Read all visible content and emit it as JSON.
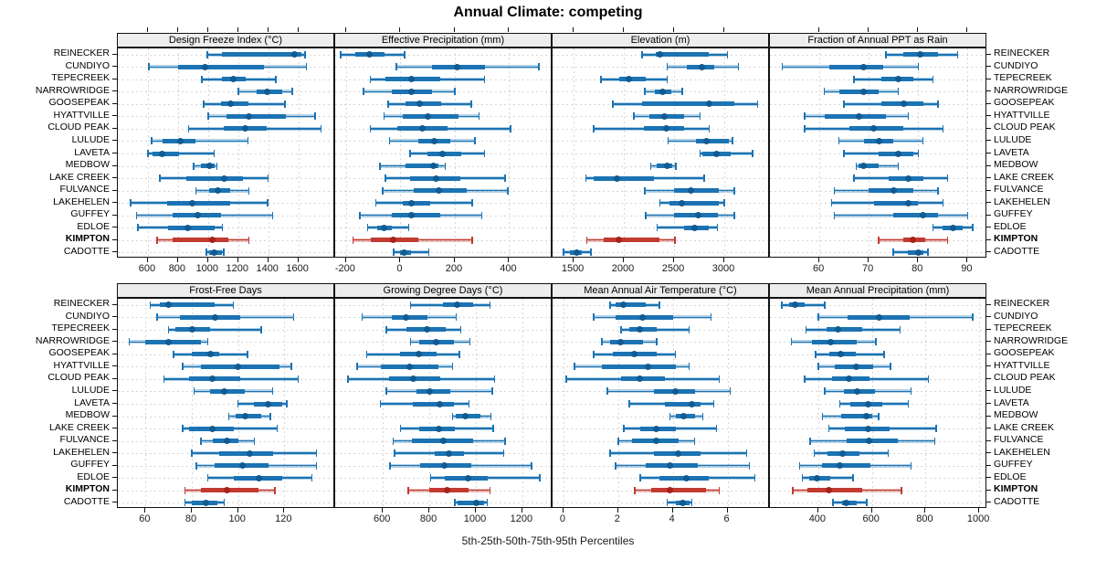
{
  "title": "Annual Climate: competing",
  "caption": "5th-25th-50th-75th-95th Percentiles",
  "colors": {
    "series_main": "#1b73b3",
    "series_light": "rgba(27,115,179,0.33)",
    "series_dot": "#135a90",
    "highlight_main": "#c23a30",
    "highlight_light": "rgba(194,58,48,0.33)",
    "highlight_dot": "#a6231b",
    "strip_bg": "#ededed",
    "grid": "#d6d6d6",
    "border": "#111111"
  },
  "chart_data": {
    "type": "interval",
    "subtype": "percentile-interval-lattice",
    "percentiles": [
      5,
      25,
      50,
      75,
      95
    ],
    "legend_position": "none",
    "grid": "dashed",
    "highlight_site": "KIMPTON",
    "sites": [
      "REINECKER",
      "CUNDIYO",
      "TEPECREEK",
      "NARROWRIDGE",
      "GOOSEPEAK",
      "HYATTVILLE",
      "CLOUD PEAK",
      "LULUDE",
      "LAVETA",
      "MEDBOW",
      "LAKE CREEK",
      "FULVANCE",
      "LAKEHELEN",
      "GUFFEY",
      "EDLOE",
      "KIMPTON",
      "CADOTTE"
    ],
    "panels": [
      {
        "title": "Design Freeze Index (°C)",
        "grid_row": 0,
        "grid_col": 0,
        "xlim": [
          400,
          1845
        ],
        "xticks": [
          600,
          800,
          1000,
          1200,
          1400,
          1600
        ],
        "values": [
          [
            995,
            1095,
            1575,
            1620,
            1645
          ],
          [
            605,
            800,
            980,
            1370,
            1655
          ],
          [
            960,
            1095,
            1165,
            1250,
            1450
          ],
          [
            1200,
            1320,
            1395,
            1490,
            1560
          ],
          [
            970,
            1085,
            1150,
            1270,
            1510
          ],
          [
            1000,
            1125,
            1270,
            1520,
            1710
          ],
          [
            870,
            1105,
            1245,
            1390,
            1750
          ],
          [
            625,
            695,
            815,
            915,
            1265
          ],
          [
            600,
            630,
            695,
            805,
            1040
          ],
          [
            905,
            955,
            1010,
            1045,
            1060
          ],
          [
            680,
            855,
            1105,
            1230,
            1400
          ],
          [
            920,
            1005,
            1065,
            1145,
            1270
          ],
          [
            485,
            725,
            895,
            1145,
            1395
          ],
          [
            525,
            765,
            930,
            1085,
            1430
          ],
          [
            535,
            735,
            865,
            1045,
            1095
          ],
          [
            660,
            765,
            1030,
            1135,
            1270
          ],
          [
            990,
            1005,
            1040,
            1095,
            1105
          ]
        ]
      },
      {
        "title": "Effective Precipitation (mm)",
        "grid_row": 0,
        "grid_col": 1,
        "xlim": [
          -240,
          560
        ],
        "xticks": [
          -200,
          0,
          200,
          400
        ],
        "values": [
          [
            -220,
            -165,
            -115,
            -60,
            15
          ],
          [
            -15,
            115,
            210,
            310,
            510
          ],
          [
            -110,
            -55,
            40,
            145,
            310
          ],
          [
            -135,
            -30,
            40,
            115,
            200
          ],
          [
            -45,
            20,
            70,
            150,
            260
          ],
          [
            -60,
            10,
            100,
            215,
            290
          ],
          [
            -110,
            -10,
            80,
            175,
            405
          ],
          [
            -40,
            65,
            125,
            185,
            275
          ],
          [
            35,
            100,
            155,
            225,
            310
          ],
          [
            -75,
            20,
            120,
            140,
            165
          ],
          [
            -55,
            35,
            130,
            220,
            385
          ],
          [
            -65,
            50,
            140,
            245,
            395
          ],
          [
            -90,
            10,
            40,
            110,
            265
          ],
          [
            -150,
            -30,
            40,
            145,
            300
          ],
          [
            -120,
            -85,
            -60,
            -30,
            30
          ],
          [
            -175,
            -110,
            -25,
            65,
            265
          ],
          [
            -25,
            0,
            15,
            40,
            105
          ]
        ]
      },
      {
        "title": "Elevation (m)",
        "grid_row": 0,
        "grid_col": 2,
        "xlim": [
          1290,
          3455
        ],
        "xticks": [
          1500,
          2000,
          2500,
          3000
        ],
        "values": [
          [
            2180,
            2320,
            2360,
            2845,
            3030
          ],
          [
            2430,
            2630,
            2780,
            2900,
            3140
          ],
          [
            1770,
            1950,
            2050,
            2220,
            2430
          ],
          [
            2210,
            2310,
            2390,
            2470,
            2580
          ],
          [
            1890,
            2180,
            2850,
            3100,
            3330
          ],
          [
            2100,
            2250,
            2400,
            2600,
            2760
          ],
          [
            1700,
            2200,
            2420,
            2600,
            2850
          ],
          [
            2440,
            2720,
            2820,
            3050,
            3080
          ],
          [
            2760,
            2780,
            2920,
            3060,
            3280
          ],
          [
            2270,
            2330,
            2430,
            2480,
            2520
          ],
          [
            1620,
            1700,
            1930,
            2300,
            2800
          ],
          [
            2210,
            2500,
            2670,
            2950,
            3100
          ],
          [
            2360,
            2450,
            2580,
            2950,
            3000
          ],
          [
            2220,
            2500,
            2740,
            2940,
            3100
          ],
          [
            2330,
            2600,
            2700,
            2850,
            2930
          ],
          [
            1630,
            1800,
            1950,
            2350,
            2510
          ],
          [
            1400,
            1460,
            1530,
            1580,
            1670
          ]
        ]
      },
      {
        "title": "Fraction of Annual PPT as Rain",
        "grid_row": 0,
        "grid_col": 3,
        "xlim": [
          50,
          94
        ],
        "xticks": [
          60,
          70,
          80,
          90
        ],
        "values": [
          [
            73.5,
            77,
            80.5,
            84,
            88
          ],
          [
            52.5,
            62,
            69,
            73,
            80
          ],
          [
            67,
            72.5,
            76,
            79,
            83
          ],
          [
            61,
            64,
            69,
            72,
            76
          ],
          [
            65,
            72.5,
            77,
            81,
            84
          ],
          [
            57,
            61,
            68,
            73.5,
            78
          ],
          [
            57,
            66,
            71,
            77,
            85
          ],
          [
            64,
            69,
            72,
            75,
            81
          ],
          [
            65,
            72,
            76,
            79,
            80
          ],
          [
            67.5,
            68,
            69,
            72,
            76
          ],
          [
            67,
            74,
            78,
            81,
            86
          ],
          [
            63,
            70,
            75,
            79,
            84
          ],
          [
            62.5,
            71,
            78,
            80,
            85
          ],
          [
            63,
            75,
            81,
            84,
            90
          ],
          [
            83,
            85,
            87,
            89,
            91
          ],
          [
            72,
            77,
            79,
            81.5,
            86
          ],
          [
            75,
            78,
            80,
            81,
            82
          ]
        ]
      },
      {
        "title": "Frost-Free Days",
        "grid_row": 1,
        "grid_col": 0,
        "xlim": [
          48,
          142
        ],
        "xticks": [
          60,
          80,
          100,
          120
        ],
        "values": [
          [
            62,
            66,
            70,
            90,
            98
          ],
          [
            65,
            75,
            90,
            101,
            124
          ],
          [
            70,
            73,
            80,
            88,
            110
          ],
          [
            53,
            60,
            70,
            84,
            87
          ],
          [
            72,
            80,
            88,
            92,
            104
          ],
          [
            76,
            84,
            100,
            118,
            123
          ],
          [
            68,
            79,
            89,
            101,
            126
          ],
          [
            81,
            88,
            94,
            103,
            115
          ],
          [
            100,
            107,
            113,
            119,
            121
          ],
          [
            96,
            99,
            103,
            110,
            114
          ],
          [
            76,
            79,
            89,
            98,
            117
          ],
          [
            84,
            89,
            95,
            100,
            107
          ],
          [
            80,
            92,
            105,
            115,
            134
          ],
          [
            82,
            90,
            102,
            113,
            134
          ],
          [
            87,
            98,
            109,
            119,
            132
          ],
          [
            77,
            84,
            95,
            109,
            116
          ],
          [
            77,
            80,
            86,
            91,
            94
          ]
        ]
      },
      {
        "title": "Growing Degree Days (°C)",
        "grid_row": 1,
        "grid_col": 1,
        "xlim": [
          395,
          1330
        ],
        "xticks": [
          600,
          800,
          1000,
          1200
        ],
        "values": [
          [
            720,
            860,
            920,
            990,
            1060
          ],
          [
            510,
            640,
            700,
            790,
            915
          ],
          [
            615,
            700,
            790,
            870,
            935
          ],
          [
            720,
            755,
            830,
            905,
            975
          ],
          [
            530,
            675,
            755,
            830,
            930
          ],
          [
            490,
            590,
            715,
            840,
            900
          ],
          [
            450,
            625,
            730,
            845,
            1080
          ],
          [
            615,
            745,
            800,
            890,
            1070
          ],
          [
            590,
            730,
            845,
            905,
            970
          ],
          [
            900,
            915,
            955,
            1020,
            1065
          ],
          [
            675,
            755,
            840,
            910,
            1075
          ],
          [
            645,
            725,
            860,
            990,
            1125
          ],
          [
            650,
            825,
            885,
            950,
            1120
          ],
          [
            630,
            760,
            865,
            980,
            1240
          ],
          [
            805,
            865,
            965,
            1050,
            1275
          ],
          [
            710,
            800,
            875,
            970,
            1060
          ],
          [
            910,
            920,
            1000,
            1035,
            1050
          ]
        ]
      },
      {
        "title": "Mean Annual Air Temperature (°C)",
        "grid_row": 1,
        "grid_col": 2,
        "xlim": [
          -0.4,
          7.55
        ],
        "xticks": [
          0,
          2,
          4,
          6
        ],
        "values": [
          [
            1.7,
            1.9,
            2.2,
            3.0,
            3.5
          ],
          [
            1.1,
            1.9,
            2.9,
            4.0,
            5.4
          ],
          [
            2.1,
            2.4,
            2.8,
            3.4,
            4.6
          ],
          [
            1.4,
            1.7,
            2.1,
            2.9,
            3.4
          ],
          [
            1.1,
            1.8,
            2.6,
            3.4,
            4.1
          ],
          [
            0.4,
            1.4,
            3.1,
            4.1,
            4.6
          ],
          [
            0.1,
            2.1,
            2.8,
            3.7,
            5.7
          ],
          [
            1.6,
            3.3,
            4.1,
            4.8,
            6.1
          ],
          [
            2.4,
            3.7,
            4.7,
            5.0,
            5.5
          ],
          [
            3.9,
            4.1,
            4.4,
            4.8,
            5.1
          ],
          [
            2.2,
            2.8,
            3.4,
            4.1,
            5.6
          ],
          [
            2.0,
            2.5,
            3.4,
            4.2,
            4.8
          ],
          [
            1.7,
            3.3,
            4.2,
            5.0,
            6.7
          ],
          [
            1.9,
            3.0,
            3.9,
            4.9,
            6.8
          ],
          [
            2.8,
            3.5,
            4.5,
            5.3,
            7.0
          ],
          [
            2.6,
            3.2,
            3.9,
            5.2,
            5.7
          ],
          [
            3.8,
            4.1,
            4.35,
            4.6,
            4.7
          ]
        ]
      },
      {
        "title": "Mean Annual Precipitation (mm)",
        "grid_row": 1,
        "grid_col": 3,
        "xlim": [
          220,
          1030
        ],
        "xticks": [
          400,
          600,
          800,
          1000
        ],
        "values": [
          [
            265,
            290,
            315,
            350,
            425
          ],
          [
            400,
            510,
            625,
            740,
            975
          ],
          [
            355,
            430,
            475,
            565,
            705
          ],
          [
            300,
            375,
            445,
            545,
            615
          ],
          [
            390,
            440,
            485,
            540,
            645
          ],
          [
            400,
            460,
            540,
            605,
            670
          ],
          [
            350,
            450,
            515,
            590,
            810
          ],
          [
            425,
            495,
            545,
            610,
            745
          ],
          [
            480,
            520,
            585,
            640,
            735
          ],
          [
            415,
            485,
            580,
            600,
            625
          ],
          [
            440,
            500,
            585,
            665,
            840
          ],
          [
            370,
            505,
            590,
            695,
            835
          ],
          [
            385,
            435,
            490,
            555,
            660
          ],
          [
            330,
            415,
            480,
            595,
            745
          ],
          [
            340,
            365,
            395,
            445,
            530
          ],
          [
            305,
            360,
            440,
            565,
            710
          ],
          [
            455,
            490,
            505,
            545,
            580
          ]
        ]
      }
    ]
  }
}
